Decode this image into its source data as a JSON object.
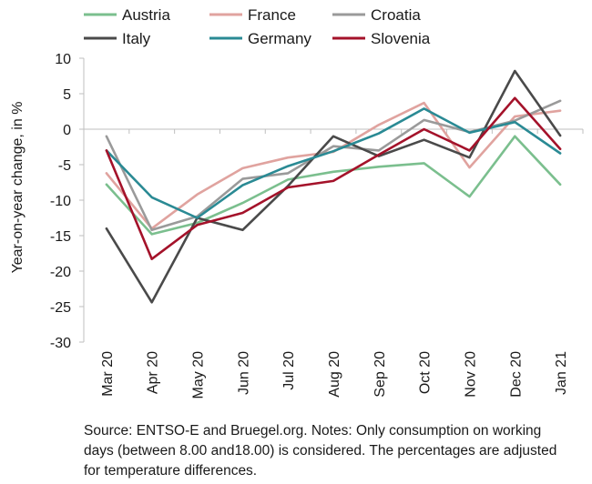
{
  "chart_data": {
    "type": "line",
    "title": "",
    "xlabel": "",
    "ylabel": "Year-on-year change, in %",
    "ylim": [
      -30,
      10
    ],
    "yticks": [
      10,
      5,
      0,
      -5,
      -10,
      -15,
      -20,
      -25,
      -30
    ],
    "grid": false,
    "legend_position": "top",
    "categories": [
      "Mar 20",
      "Apr 20",
      "May 20",
      "Jun 20",
      "Jul 20",
      "Aug 20",
      "Sep 20",
      "Oct 20",
      "Nov 20",
      "Dec 20",
      "Jan 21"
    ],
    "series": [
      {
        "name": "Austria",
        "color": "#7bbf8e",
        "values": [
          -7.8,
          -14.8,
          -13.2,
          -10.4,
          -7.1,
          -6.0,
          -5.3,
          -4.8,
          -9.5,
          -1.0,
          -7.8
        ]
      },
      {
        "name": "France",
        "color": "#e0a39f",
        "values": [
          -6.2,
          -14.0,
          -9.2,
          -5.5,
          -4.0,
          -3.2,
          0.6,
          3.7,
          -5.4,
          1.8,
          2.6
        ]
      },
      {
        "name": "Croatia",
        "color": "#9a9a9a",
        "values": [
          -1.0,
          -14.2,
          -12.3,
          -7.0,
          -6.2,
          -2.4,
          -3.0,
          1.3,
          -0.4,
          1.2,
          4.0
        ]
      },
      {
        "name": "Italy",
        "color": "#4a4a4a",
        "values": [
          -14.0,
          -24.4,
          -12.5,
          -14.2,
          -8.0,
          -1.0,
          -3.8,
          -1.5,
          -4.0,
          8.2,
          -0.9
        ]
      },
      {
        "name": "Germany",
        "color": "#2a8a94",
        "values": [
          -3.0,
          -9.6,
          -12.5,
          -7.9,
          -5.2,
          -3.1,
          -0.6,
          2.9,
          -0.5,
          1.0,
          -3.4
        ]
      },
      {
        "name": "Slovenia",
        "color": "#a4122a",
        "values": [
          -3.0,
          -18.3,
          -13.5,
          -11.8,
          -8.2,
          -7.3,
          -3.6,
          0.0,
          -3.0,
          4.4,
          -2.8
        ]
      }
    ]
  },
  "source_note": "Source: ENTSO-E and Bruegel.org. Notes: Only consumption on working days (between 8.00 and18.00) is considered. The percentages are adjusted for temperature differences."
}
